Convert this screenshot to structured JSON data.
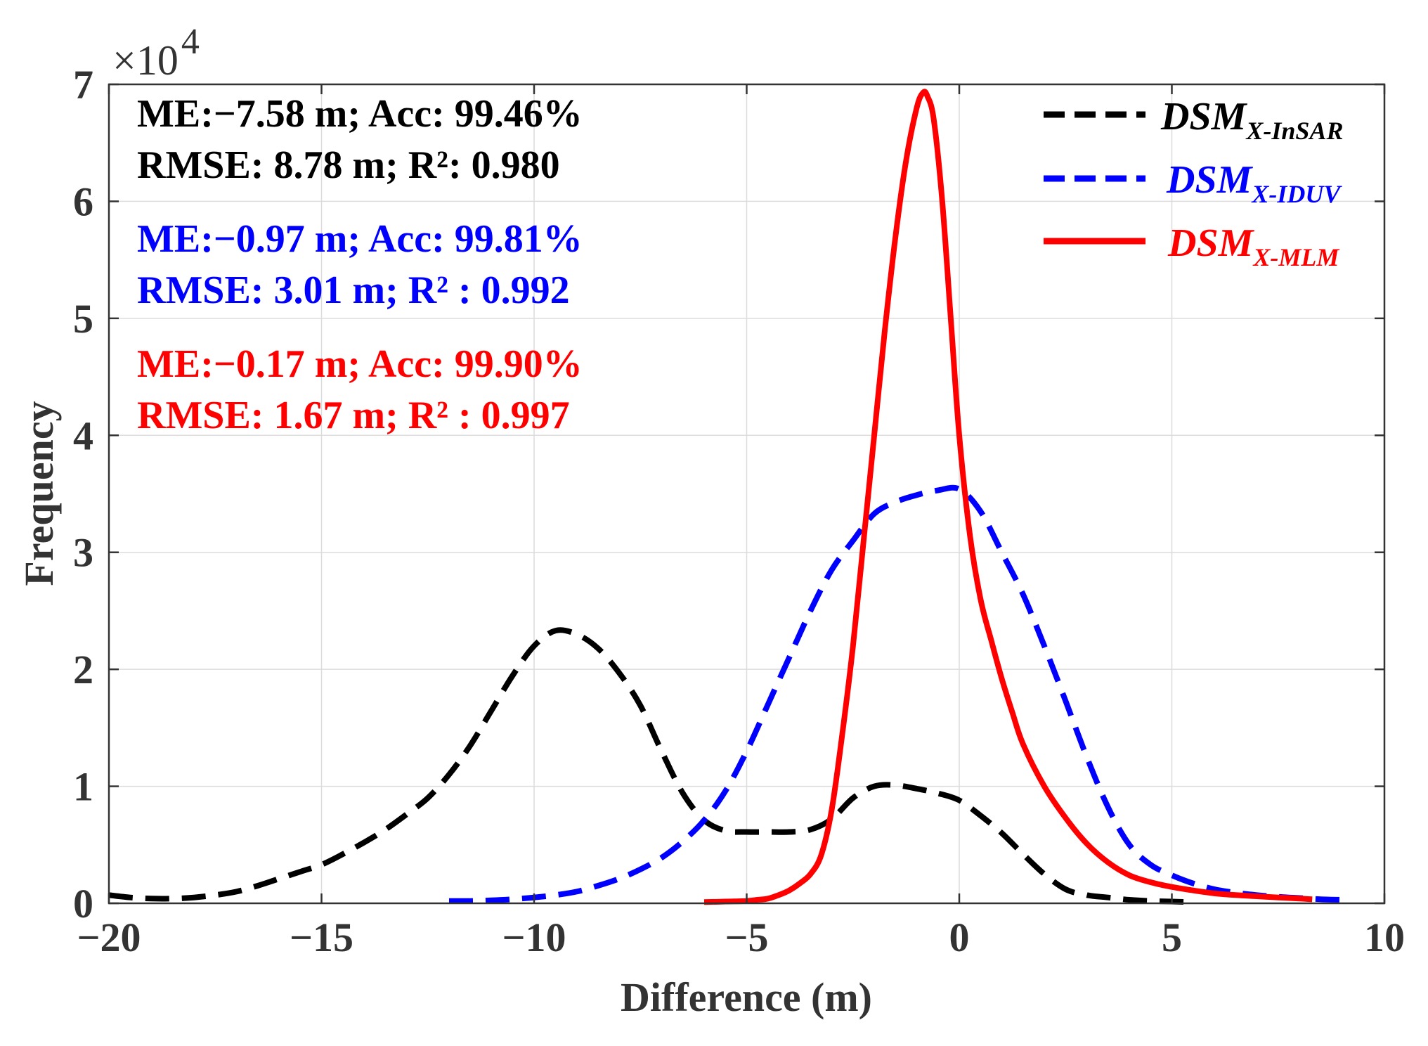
{
  "chart_data": {
    "type": "line",
    "xlabel": "Difference (m)",
    "ylabel": "Frequency",
    "xlim": [
      -20,
      10
    ],
    "ylim": [
      0,
      70000
    ],
    "xticks": [
      -20,
      -15,
      -10,
      -5,
      0,
      5,
      10
    ],
    "xtick_labels": [
      "−20",
      "−15",
      "−10",
      "−5",
      "0",
      "5",
      "10"
    ],
    "yticks": [
      0,
      10000,
      20000,
      30000,
      40000,
      50000,
      60000,
      70000
    ],
    "ytick_labels": [
      "0",
      "1",
      "2",
      "3",
      "4",
      "5",
      "6",
      "7"
    ],
    "y_multiplier": {
      "base": "×10",
      "exponent": "4"
    },
    "grid": true,
    "legend_position": "top-right",
    "series": [
      {
        "name": "DSM X-InSAR",
        "legend_main": "DSM",
        "legend_sub": "X-InSAR",
        "color": "#000000",
        "style": "dashed",
        "x": [
          -20,
          -19.5,
          -19,
          -18.5,
          -18,
          -17.5,
          -17,
          -16.5,
          -16,
          -15.5,
          -15,
          -14.5,
          -14,
          -13.5,
          -13,
          -12.5,
          -12,
          -11.5,
          -11,
          -10.5,
          -10,
          -9.5,
          -9,
          -8.5,
          -8,
          -7.5,
          -7,
          -6.5,
          -6,
          -5.5,
          -5,
          -4.5,
          -4,
          -3.5,
          -3,
          -2.5,
          -2,
          -1.5,
          -1,
          -0.5,
          0,
          0.5,
          1,
          1.5,
          2,
          2.5,
          3,
          3.5,
          4,
          4.5,
          5,
          5.5
        ],
        "y": [
          700,
          500,
          400,
          400,
          500,
          700,
          1000,
          1500,
          2100,
          2700,
          3300,
          4200,
          5200,
          6300,
          7600,
          9000,
          11000,
          13500,
          16500,
          19500,
          22000,
          23300,
          23000,
          21800,
          19700,
          16900,
          13000,
          9400,
          7100,
          6200,
          6100,
          6100,
          6100,
          6300,
          7200,
          9000,
          10000,
          10100,
          9800,
          9400,
          8800,
          7500,
          6000,
          4200,
          2500,
          1200,
          700,
          500,
          300,
          200,
          150,
          100
        ]
      },
      {
        "name": "DSM X-IDUV",
        "legend_main": "DSM",
        "legend_sub": "X-IDUV",
        "color": "#0000ff",
        "style": "dashed",
        "x": [
          -12,
          -11.5,
          -11,
          -10.5,
          -10,
          -9.5,
          -9,
          -8.5,
          -8,
          -7.5,
          -7,
          -6.5,
          -6,
          -5.5,
          -5,
          -4.5,
          -4,
          -3.5,
          -3,
          -2.5,
          -2,
          -1.5,
          -1,
          -0.5,
          0,
          0.5,
          1,
          1.5,
          2,
          2.5,
          3,
          3.5,
          4,
          4.5,
          5,
          5.5,
          6,
          6.5,
          7,
          7.5,
          8,
          8.5,
          9
        ],
        "y": [
          200,
          200,
          250,
          350,
          500,
          700,
          1000,
          1500,
          2100,
          2900,
          3900,
          5300,
          7100,
          9600,
          13000,
          17000,
          21000,
          25000,
          28500,
          31000,
          33300,
          34300,
          34900,
          35300,
          35400,
          33500,
          30000,
          26400,
          22000,
          17300,
          12500,
          8200,
          5000,
          3300,
          2400,
          1700,
          1200,
          900,
          700,
          550,
          450,
          350,
          300
        ]
      },
      {
        "name": "DSM X-MLM",
        "legend_main": "DSM",
        "legend_sub": "X-MLM",
        "color": "#ff0000",
        "style": "solid",
        "x": [
          -6,
          -5.5,
          -5,
          -4.75,
          -4.5,
          -4.25,
          -4,
          -3.75,
          -3.5,
          -3.25,
          -3,
          -2.75,
          -2.5,
          -2.25,
          -2,
          -1.75,
          -1.5,
          -1.25,
          -1,
          -0.85,
          -0.75,
          -0.6,
          -0.4,
          -0.2,
          0,
          0.25,
          0.5,
          0.75,
          1,
          1.25,
          1.5,
          2,
          2.5,
          3,
          3.5,
          4,
          4.5,
          5,
          5.5,
          6,
          6.5,
          7,
          7.5,
          8,
          8.3
        ],
        "y": [
          100,
          150,
          200,
          300,
          400,
          700,
          1100,
          1700,
          2500,
          4100,
          8000,
          14500,
          22000,
          31000,
          40000,
          49000,
          57000,
          63500,
          68000,
          69300,
          69000,
          67000,
          60000,
          50000,
          40000,
          31500,
          26000,
          22500,
          19200,
          16300,
          13600,
          10000,
          7300,
          5100,
          3500,
          2400,
          1800,
          1400,
          1100,
          850,
          700,
          600,
          500,
          400,
          350
        ]
      }
    ],
    "annotations": [
      {
        "line1": "ME:−7.58 m; Acc: 99.46%",
        "line2": "RMSE: 8.78 m;  R²: 0.980",
        "color": "#000000"
      },
      {
        "line1": "ME:−0.97 m; Acc: 99.81%",
        "line2": "RMSE: 3.01 m; R² : 0.992",
        "color": "#0000ff"
      },
      {
        "line1": "ME:−0.17 m; Acc: 99.90%",
        "line2": "RMSE: 1.67 m; R² : 0.997",
        "color": "#ff0000"
      }
    ]
  }
}
